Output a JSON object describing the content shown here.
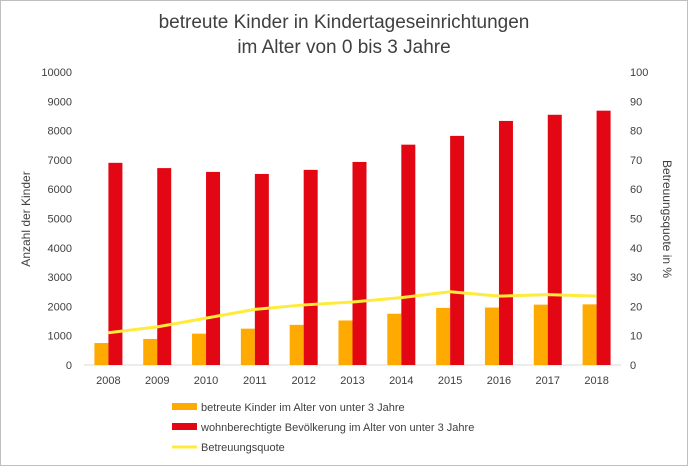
{
  "chart_data": {
    "type": "bar",
    "title": [
      "betreute Kinder in Kindertageseinrichtungen",
      "im Alter von 0 bis 3 Jahre"
    ],
    "ylabel": "Anzahl der Kinder",
    "y2label": "Betreuungsquote in %",
    "ylim": [
      0,
      10000
    ],
    "y2lim": [
      0,
      100
    ],
    "y_ticks": [
      0,
      1000,
      2000,
      3000,
      4000,
      5000,
      6000,
      7000,
      8000,
      9000,
      10000
    ],
    "y2_ticks": [
      0,
      10,
      20,
      30,
      40,
      50,
      60,
      70,
      80,
      90,
      100
    ],
    "categories": [
      "2008",
      "2009",
      "2010",
      "2011",
      "2012",
      "2013",
      "2014",
      "2015",
      "2016",
      "2017",
      "2018"
    ],
    "grid": false,
    "legend_position": "bottom",
    "series": [
      {
        "name": "betreute Kinder im Alter von unter 3 Jahre",
        "type": "bar",
        "axis": "left",
        "color": "#ffaa00",
        "values": [
          750,
          890,
          1070,
          1240,
          1370,
          1520,
          1750,
          1950,
          1960,
          2060,
          2070
        ]
      },
      {
        "name": "wohnberechtigte Bevölkerung im Alter von unter 3 Jahre",
        "type": "bar",
        "axis": "left",
        "color": "#e30613",
        "values": [
          6900,
          6720,
          6590,
          6520,
          6660,
          6930,
          7520,
          7820,
          8330,
          8540,
          8680
        ]
      },
      {
        "name": "Betreuungsquote",
        "type": "line",
        "axis": "right",
        "color": "#ffeb3b",
        "values": [
          11,
          13,
          16,
          19,
          20.5,
          21.5,
          23,
          25,
          23.5,
          24,
          23.5
        ]
      }
    ]
  }
}
